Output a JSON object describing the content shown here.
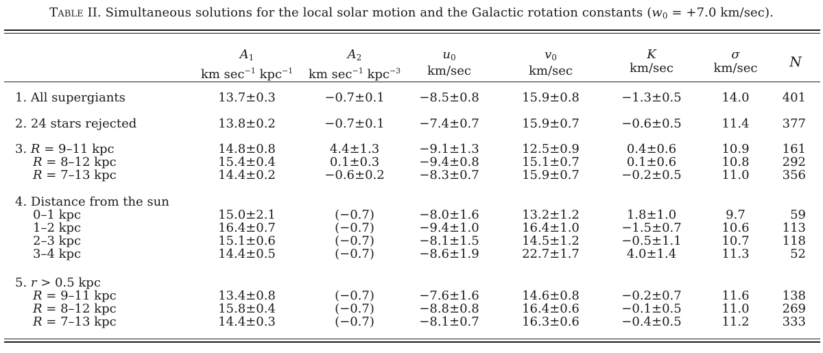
{
  "caption": {
    "lead": "Table II.",
    "text": "Simultaneous solutions for the local solar motion and the Galactic rotation constants (",
    "param_symbol": "w",
    "param_sub": "0",
    "param_value": " = +7.0 km/sec)."
  },
  "headers": {
    "A1": {
      "symbol": "A",
      "sub": "1",
      "unit_pre": "km sec",
      "unit_exp1": "−1",
      "unit_mid": " kpc",
      "unit_exp2": "−1"
    },
    "A2": {
      "symbol": "A",
      "sub": "2",
      "unit_pre": "km sec",
      "unit_exp1": "−1",
      "unit_mid": " kpc",
      "unit_exp2": "−3"
    },
    "u0": {
      "symbol": "u",
      "sub": "0",
      "unit": "km/sec"
    },
    "v0": {
      "symbol": "v",
      "sub": "0",
      "unit": "km/sec"
    },
    "K": {
      "symbol": "K",
      "unit": "km/sec"
    },
    "sigma": {
      "symbol": "σ",
      "unit": "km/sec"
    },
    "N": {
      "symbol": "N"
    }
  },
  "rows": [
    {
      "label": "1. All supergiants",
      "A1": "13.7±0.3",
      "A2": "−0.7±0.1",
      "u0": "−8.5±0.8",
      "v0": "15.9±0.8",
      "K": "−1.3±0.5",
      "sigma": "14.0",
      "N": "401"
    },
    {
      "label": "2. 24 stars rejected",
      "A1": "13.8±0.2",
      "A2": "−0.7±0.1",
      "u0": "−7.4±0.7",
      "v0": "15.9±0.7",
      "K": "−0.6±0.5",
      "sigma": "11.4",
      "N": "377"
    },
    {
      "label_num": "3. ",
      "label_var": "R",
      "label_rest": " = 9–11 kpc",
      "A1": "14.8±0.8",
      "A2": "4.4±1.3",
      "u0": "−9.1±1.3",
      "v0": "12.5±0.9",
      "K": "0.4±0.6",
      "sigma": "10.9",
      "N": "161"
    },
    {
      "label_var": "R",
      "label_rest": " = 8–12 kpc",
      "A1": "15.4±0.4",
      "A2": "0.1±0.3",
      "u0": "−9.4±0.8",
      "v0": "15.1±0.7",
      "K": "0.1±0.6",
      "sigma": "10.8",
      "N": "292"
    },
    {
      "label_var": "R",
      "label_rest": " = 7–13 kpc",
      "A1": "14.4±0.2",
      "A2": "−0.6±0.2",
      "u0": "−8.3±0.7",
      "v0": "15.9±0.7",
      "K": "−0.2±0.5",
      "sigma": "11.0",
      "N": "356"
    },
    {
      "label": "4. Distance from the sun"
    },
    {
      "label": "0–1 kpc",
      "A1": "15.0±2.1",
      "A2": "(−0.7)",
      "u0": "−8.0±1.6",
      "v0": "13.2±1.2",
      "K": "1.8±1.0",
      "sigma": "9.7",
      "N": "59"
    },
    {
      "label": "1–2 kpc",
      "A1": "16.4±0.7",
      "A2": "(−0.7)",
      "u0": "−9.4±1.0",
      "v0": "16.4±1.0",
      "K": "−1.5±0.7",
      "sigma": "10.6",
      "N": "113"
    },
    {
      "label": "2–3 kpc",
      "A1": "15.1±0.6",
      "A2": "(−0.7)",
      "u0": "−8.1±1.5",
      "v0": "14.5±1.2",
      "K": "−0.5±1.1",
      "sigma": "10.7",
      "N": "118"
    },
    {
      "label": "3–4 kpc",
      "A1": "14.4±0.5",
      "A2": "(−0.7)",
      "u0": "−8.6±1.9",
      "v0": "22.7±1.7",
      "K": "4.0±1.4",
      "sigma": "11.3",
      "N": "52"
    },
    {
      "label_num": "5. ",
      "label_var": "r",
      "label_rest": " > 0.5 kpc"
    },
    {
      "label_var": "R",
      "label_rest": " = 9–11 kpc",
      "A1": "13.4±0.8",
      "A2": "(−0.7)",
      "u0": "−7.6±1.6",
      "v0": "14.6±0.8",
      "K": "−0.2±0.7",
      "sigma": "11.6",
      "N": "138"
    },
    {
      "label_var": "R",
      "label_rest": " = 8–12 kpc",
      "A1": "15.8±0.4",
      "A2": "(−0.7)",
      "u0": "−8.8±0.8",
      "v0": "16.4±0.6",
      "K": "−0.1±0.5",
      "sigma": "11.0",
      "N": "269"
    },
    {
      "label_var": "R",
      "label_rest": " = 7–13 kpc",
      "A1": "14.4±0.3",
      "A2": "(−0.7)",
      "u0": "−8.1±0.7",
      "v0": "16.3±0.6",
      "K": "−0.4±0.5",
      "sigma": "11.2",
      "N": "333"
    }
  ]
}
